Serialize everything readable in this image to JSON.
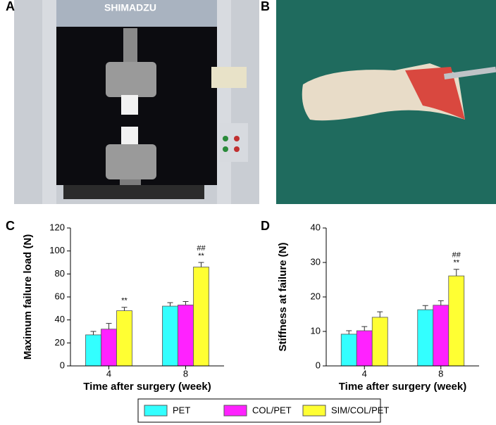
{
  "photo_panels": [
    {
      "label": "A",
      "brand": "SHIMADZU"
    },
    {
      "label": "B"
    }
  ],
  "chart_data": [
    {
      "type": "bar",
      "panel": "C",
      "x_label": "Time after surgery (week)",
      "y_label": "Maximum failure load (N)",
      "categories": [
        "4",
        "8"
      ],
      "ylim": [
        0,
        120
      ],
      "yticks": [
        0,
        20,
        40,
        60,
        80,
        100,
        120
      ],
      "series": [
        {
          "name": "PET",
          "color": "#33ffff",
          "values": [
            27,
            52
          ],
          "errors": [
            3,
            3
          ]
        },
        {
          "name": "COL/PET",
          "color": "#ff22ff",
          "values": [
            32,
            53
          ],
          "errors": [
            5,
            3
          ]
        },
        {
          "name": "SIM/COL/PET",
          "color": "#ffff33",
          "values": [
            48,
            86
          ],
          "errors": [
            3,
            4
          ],
          "annotations": [
            [
              "**"
            ],
            [
              "##",
              "**"
            ]
          ]
        }
      ]
    },
    {
      "type": "bar",
      "panel": "D",
      "x_label": "Time after surgery (week)",
      "y_label": "Stiffness at failure (N)",
      "categories": [
        "4",
        "8"
      ],
      "ylim": [
        0,
        40
      ],
      "yticks": [
        0,
        10,
        20,
        30,
        40
      ],
      "series": [
        {
          "name": "PET",
          "color": "#33ffff",
          "values": [
            9.2,
            16.3
          ],
          "errors": [
            1,
            1.2
          ]
        },
        {
          "name": "COL/PET",
          "color": "#ff22ff",
          "values": [
            10.2,
            17.6
          ],
          "errors": [
            1.2,
            1.3
          ]
        },
        {
          "name": "SIM/COL/PET",
          "color": "#ffff33",
          "values": [
            14.1,
            26.1
          ],
          "errors": [
            1.6,
            1.9
          ],
          "annotations": [
            [],
            [
              "##",
              "**"
            ]
          ]
        }
      ]
    }
  ]
}
